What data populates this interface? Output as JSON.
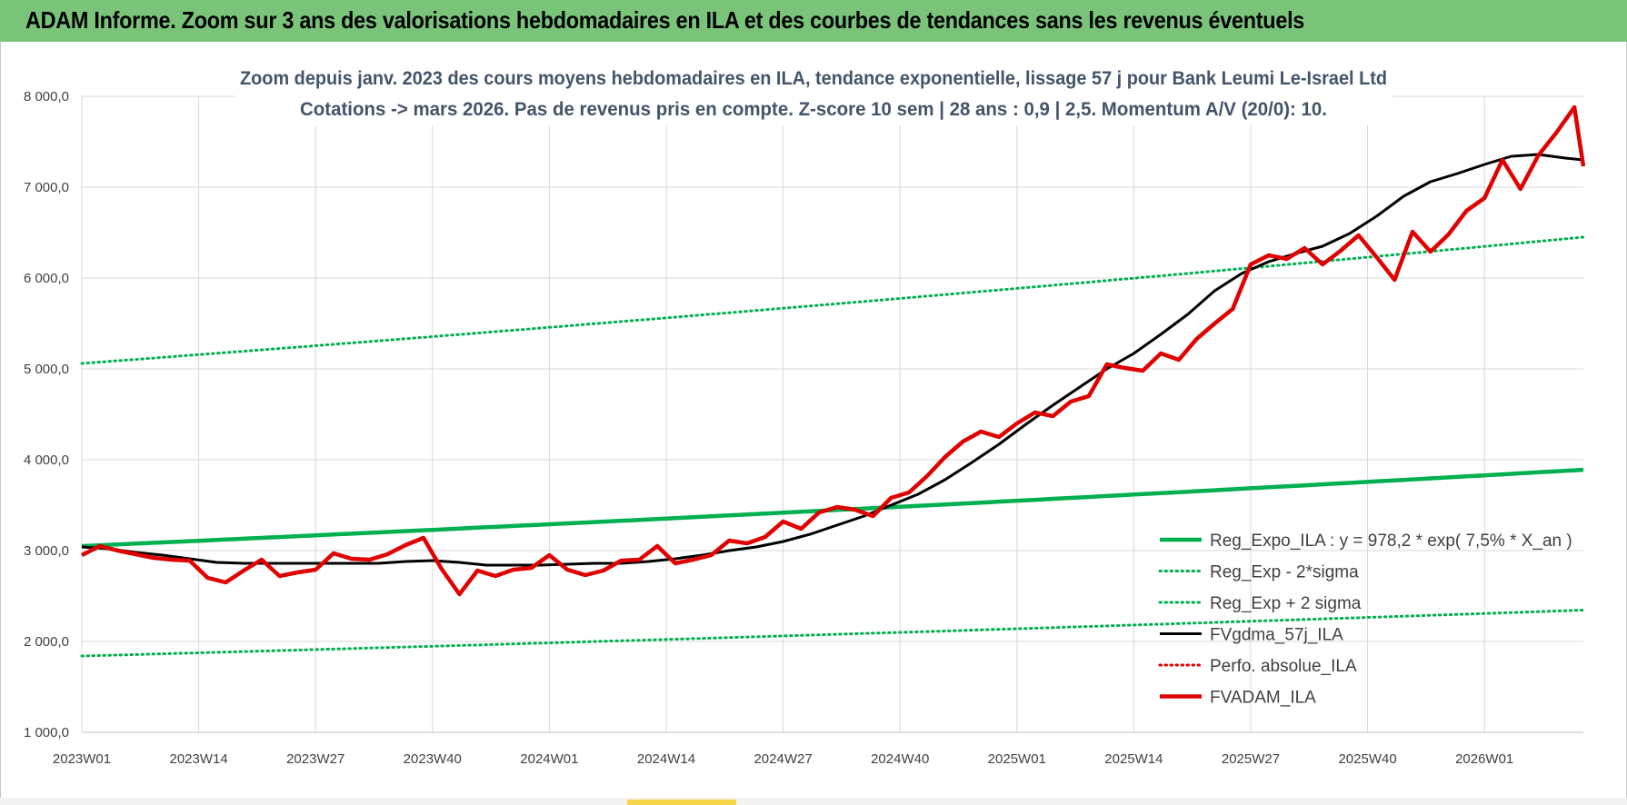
{
  "banner": {
    "title": "ADAM Informe. Zoom sur 3 ans des valorisations hebdomadaires en ILA et des courbes de tendances sans les revenus éventuels",
    "color": "#7ac47a"
  },
  "chart_data": {
    "type": "line",
    "title_lines": [
      "Zoom depuis janv. 2023 des cours moyens hebdomadaires en ILA,  tendance exponentielle, lissage 57 j pour Bank Leumi Le-Israel Ltd",
      "Cotations -> mars 2026. Pas de revenus pris en compte. Z-score 10 sem | 28 ans : 0,9 | 2,5. Momentum A/V (20/0): 10."
    ],
    "ylim": [
      1000,
      8000
    ],
    "y_ticks": [
      1000,
      2000,
      3000,
      4000,
      5000,
      6000,
      7000,
      8000
    ],
    "y_tick_labels": [
      "1 000,0",
      "2 000,0",
      "3 000,0",
      "4 000,0",
      "5 000,0",
      "6 000,0",
      "7 000,0",
      "8 000,0"
    ],
    "x_range_weeks": [
      0,
      167
    ],
    "x_ticks": [
      0,
      13,
      26,
      39,
      52,
      65,
      78,
      91,
      104,
      117,
      130,
      143,
      156
    ],
    "x_tick_labels": [
      "2023W01",
      "2023W14",
      "2023W27",
      "2023W40",
      "2024W01",
      "2024W14",
      "2024W27",
      "2024W40",
      "2025W01",
      "2025W14",
      "2025W27",
      "2025W40",
      "2026W01"
    ],
    "grid": true,
    "legend_position": "bottom-right",
    "series": [
      {
        "name": "Reg_Expo_ILA : y = 978,2 * exp( 7,5% *  X_an )",
        "color": "#00b050",
        "style": "solid-thick",
        "x": [
          0,
          167
        ],
        "y": [
          3050,
          3890
        ],
        "curve": "exponential"
      },
      {
        "name": "Reg_Exp - 2*sigma",
        "color": "#00b050",
        "style": "dotted",
        "x": [
          0,
          167
        ],
        "y": [
          1840,
          2345
        ],
        "curve": "exponential"
      },
      {
        "name": "Reg_Exp + 2 sigma",
        "color": "#00b050",
        "style": "dotted",
        "x": [
          0,
          167
        ],
        "y": [
          5060,
          6450
        ],
        "curve": "exponential"
      },
      {
        "name": "FVgdma_57j_ILA",
        "color": "#000000",
        "style": "solid",
        "x": [
          0,
          3,
          6,
          9,
          12,
          15,
          18,
          21,
          24,
          27,
          30,
          33,
          36,
          39,
          42,
          45,
          48,
          51,
          54,
          57,
          60,
          63,
          66,
          69,
          72,
          75,
          78,
          81,
          84,
          87,
          90,
          93,
          96,
          99,
          102,
          105,
          108,
          111,
          114,
          117,
          120,
          123,
          126,
          129,
          132,
          135,
          138,
          141,
          144,
          147,
          150,
          153,
          156,
          159,
          162,
          165,
          167
        ],
        "y": [
          3040,
          3020,
          2980,
          2950,
          2910,
          2870,
          2860,
          2860,
          2860,
          2860,
          2860,
          2860,
          2880,
          2890,
          2870,
          2840,
          2840,
          2840,
          2850,
          2860,
          2860,
          2880,
          2910,
          2950,
          3000,
          3040,
          3100,
          3180,
          3280,
          3380,
          3500,
          3620,
          3780,
          3970,
          4170,
          4390,
          4600,
          4800,
          5000,
          5170,
          5380,
          5600,
          5860,
          6050,
          6180,
          6270,
          6350,
          6490,
          6680,
          6900,
          7060,
          7150,
          7250,
          7340,
          7360,
          7320,
          7300
        ]
      },
      {
        "name": "Perfo. absolue_ILA",
        "color": "#e00000",
        "style": "dotted",
        "x": [],
        "y": []
      },
      {
        "name": "FVADAM_ILA",
        "color": "#e00000",
        "style": "solid-thick",
        "x": [
          0,
          2,
          4,
          6,
          8,
          10,
          12,
          14,
          16,
          18,
          20,
          22,
          24,
          26,
          28,
          30,
          32,
          34,
          36,
          38,
          40,
          42,
          44,
          46,
          48,
          50,
          52,
          54,
          56,
          58,
          60,
          62,
          64,
          66,
          68,
          70,
          72,
          74,
          76,
          78,
          80,
          82,
          84,
          86,
          88,
          90,
          92,
          94,
          96,
          98,
          100,
          102,
          104,
          106,
          108,
          110,
          112,
          114,
          116,
          118,
          120,
          122,
          124,
          126,
          128,
          130,
          132,
          134,
          136,
          138,
          140,
          142,
          144,
          146,
          148,
          150,
          152,
          154,
          156,
          158,
          160,
          162,
          164,
          166,
          167
        ],
        "y": [
          2950,
          3050,
          3000,
          2960,
          2920,
          2900,
          2890,
          2700,
          2650,
          2780,
          2900,
          2720,
          2760,
          2790,
          2970,
          2910,
          2900,
          2960,
          3060,
          3140,
          2800,
          2520,
          2780,
          2720,
          2790,
          2810,
          2950,
          2790,
          2730,
          2780,
          2890,
          2900,
          3050,
          2860,
          2900,
          2950,
          3110,
          3080,
          3150,
          3320,
          3240,
          3420,
          3480,
          3450,
          3380,
          3580,
          3640,
          3820,
          4030,
          4200,
          4310,
          4250,
          4400,
          4520,
          4480,
          4640,
          4700,
          5050,
          5010,
          4980,
          5170,
          5100,
          5330,
          5500,
          5660,
          6150,
          6250,
          6210,
          6330,
          6150,
          6300,
          6470,
          6230,
          5980,
          6510,
          6290,
          6480,
          6740,
          6880,
          7300,
          6980,
          7350,
          7600,
          7880,
          7230
        ]
      }
    ]
  }
}
